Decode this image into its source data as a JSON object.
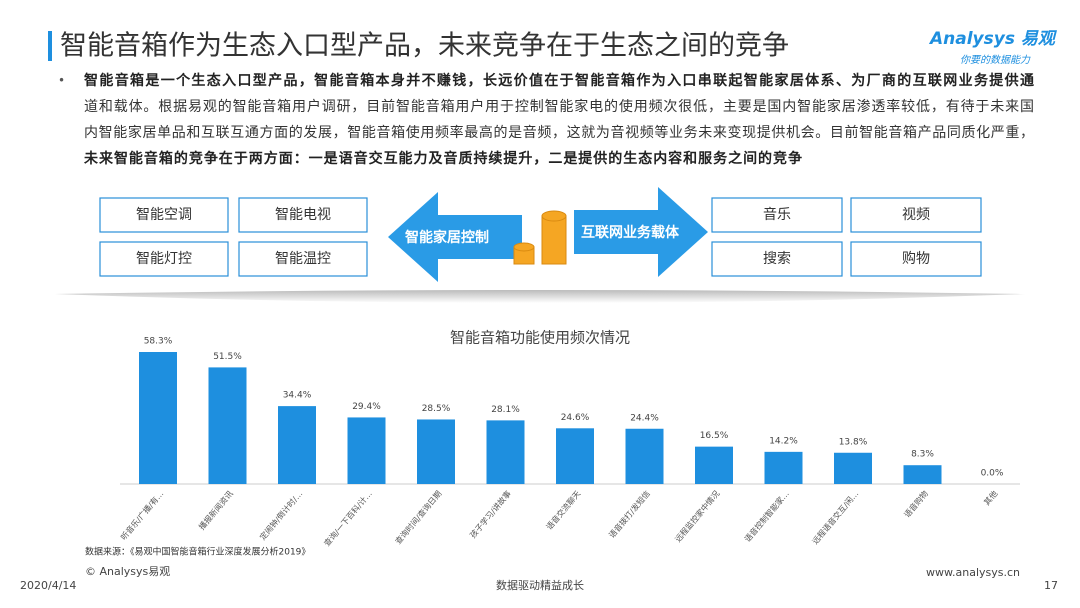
{
  "header": {
    "title": "智能音箱作为生态入口型产品，未来竞争在于生态之间的竞争",
    "logo": "Analysys 易观",
    "slogan": "你要的数据能力"
  },
  "bullet": [
    "智能音箱是一个生态入口型产品，智能音箱本身并不赚钱，长远价值在于智能音箱作为入口串联起智能家居体系、为厂商的互联网业务提供通",
    "道和载体。根据易观的智能音箱用户调研，目前智能音箱用户用于控制智能家电的使用频次很低，主要是国内智能家居渗透率较低，有待于未来国",
    "内智能家居单品和互联互通方面的发展，智能音箱使用频率最高的是音频，这就为音视频等业务未来变现提供机会。目前智能音箱产品同质化严重，",
    "未来智能音箱的竞争在于两方面：一是语音交互能力及音质持续提升，二是提供的生态内容和服务之间的竞争"
  ],
  "diagram": {
    "left_boxes": [
      "智能空调",
      "智能电视",
      "智能灯控",
      "智能温控"
    ],
    "left_arrow": "智能家居控制",
    "right_arrow": "互联网业务载体",
    "right_boxes": [
      "音乐",
      "视频",
      "搜索",
      "购物"
    ]
  },
  "chart_data": {
    "type": "bar",
    "title": "智能音箱功能使用频次情况",
    "categories": [
      "听音乐/广播/有…",
      "播报新闻资讯",
      "定闹钟/倒计时/…",
      "查询/一下百科/计…",
      "查询时间/查询日期",
      "孩子学习/讲故事",
      "语音交流聊天",
      "语音拨打/发短信",
      "远程监控家中情况",
      "语音控制智能家…",
      "远程语音交互/闲…",
      "语音购物",
      "其他"
    ],
    "values": [
      58.3,
      51.5,
      34.4,
      29.4,
      28.5,
      28.1,
      24.6,
      24.4,
      16.5,
      14.2,
      13.8,
      8.3,
      0
    ],
    "value_labels": [
      "58.3%",
      "51.5%",
      "34.4%",
      "29.4%",
      "28.5%",
      "28.1%",
      "24.6%",
      "24.4%",
      "16.5%",
      "14.2%",
      "13.8%",
      "8.3%",
      "0.0%"
    ],
    "color": "#1e8fdf",
    "source": "数据来源：《易观中国智能音箱行业深度发展分析2019》"
  },
  "footer": {
    "copyright": "© Analysys易观",
    "date": "2020/4/14",
    "slogan": "数据驱动精益成长",
    "url": "www.analysys.cn",
    "page": "17"
  }
}
